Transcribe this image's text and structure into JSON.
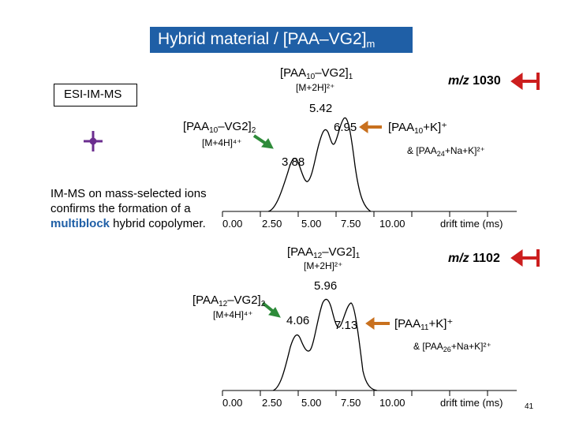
{
  "title": {
    "main": "Hybrid material / [PAA–VG2]",
    "sub": "m"
  },
  "esi_label": "ESI-IM-MS",
  "side_note": {
    "before": "IM-MS on mass-selected ions confirms the formation of a ",
    "highlight": "multiblock",
    "after": " hybrid copolymer."
  },
  "page_number": "41",
  "panel1": {
    "species_top": {
      "a": "[PAA",
      "b": "10",
      "c": "–VG2]",
      "d": "1"
    },
    "charge_top": "[M+2H]²⁺",
    "mz_label": "m/z",
    "mz_value": "1030",
    "peak_main": "5.42",
    "species_left": {
      "a": "[PAA",
      "b": "10",
      "c": "–VG2]",
      "d": "2"
    },
    "charge_left": "[M+4H]⁴⁺",
    "peak_mid": "6.95",
    "species_right": {
      "a": "[PAA",
      "b": "10",
      "c": "+K]⁺"
    },
    "species_right2": {
      "a": "& [PAA",
      "b": "24",
      "c": "+Na+K]²⁺"
    },
    "peak_low": "3.88",
    "ticks": [
      "0.00",
      "2.50",
      "5.00",
      "7.50",
      "10.00"
    ],
    "xlabel": "drift time (ms)"
  },
  "panel2": {
    "species_top": {
      "a": "[PAA",
      "b": "12",
      "c": "–VG2]",
      "d": "1"
    },
    "charge_top": "[M+2H]²⁺",
    "mz_label": "m/z",
    "mz_value": "1102",
    "peak_main": "5.96",
    "species_left": {
      "a": "[PAA",
      "b": "12",
      "c": "–VG2]",
      "d": "2"
    },
    "charge_left": "[M+4H]⁴⁺",
    "peak_low": "4.06",
    "peak_mid": "7.13",
    "species_right": {
      "a": "[PAA",
      "b": "11",
      "c": "+K]⁺"
    },
    "species_right2": {
      "a": "& [PAA",
      "b": "26",
      "c": "+Na+K]²⁺"
    },
    "ticks": [
      "0.00",
      "2.50",
      "5.00",
      "7.50",
      "10.00"
    ],
    "xlabel": "drift time (ms)"
  },
  "colors": {
    "title_bg": "#1f5fa6",
    "arrow_red": "#cc1e1e",
    "arrow_green": "#2e8b3a",
    "arrow_orange": "#c8701e",
    "purple": "#6b2d8f",
    "highlight": "#1f5fa6"
  }
}
